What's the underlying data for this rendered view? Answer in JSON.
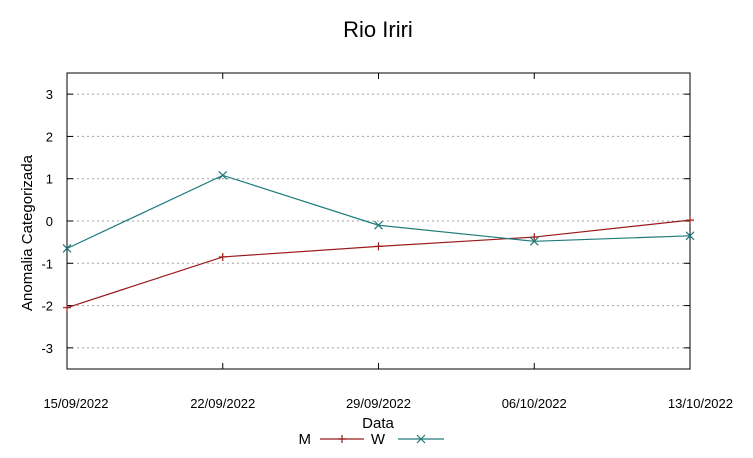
{
  "chart_data": {
    "type": "line",
    "title": "Rio Iriri",
    "xlabel": "Data",
    "ylabel": "Anomalia Categorizada",
    "categories": [
      "15/09/2022",
      "22/09/2022",
      "29/09/2022",
      "06/10/2022",
      "13/10/2022"
    ],
    "ylim": [
      -3.5,
      3.5
    ],
    "yticks": [
      3,
      2,
      1,
      0,
      -1,
      -2,
      -3
    ],
    "ytick_labels": [
      "3",
      "2",
      "1",
      "0",
      "-1",
      "-2",
      "-3"
    ],
    "grid": true,
    "legend_position": "bottom",
    "series": [
      {
        "name": "M",
        "color": "#9b1b1b",
        "marker": "plus",
        "values": [
          -2.05,
          -0.85,
          -0.6,
          -0.38,
          0.02
        ]
      },
      {
        "name": "W",
        "color": "#1f7a7a",
        "marker": "cross",
        "values": [
          -0.65,
          1.08,
          -0.1,
          -0.48,
          -0.35
        ]
      }
    ]
  }
}
